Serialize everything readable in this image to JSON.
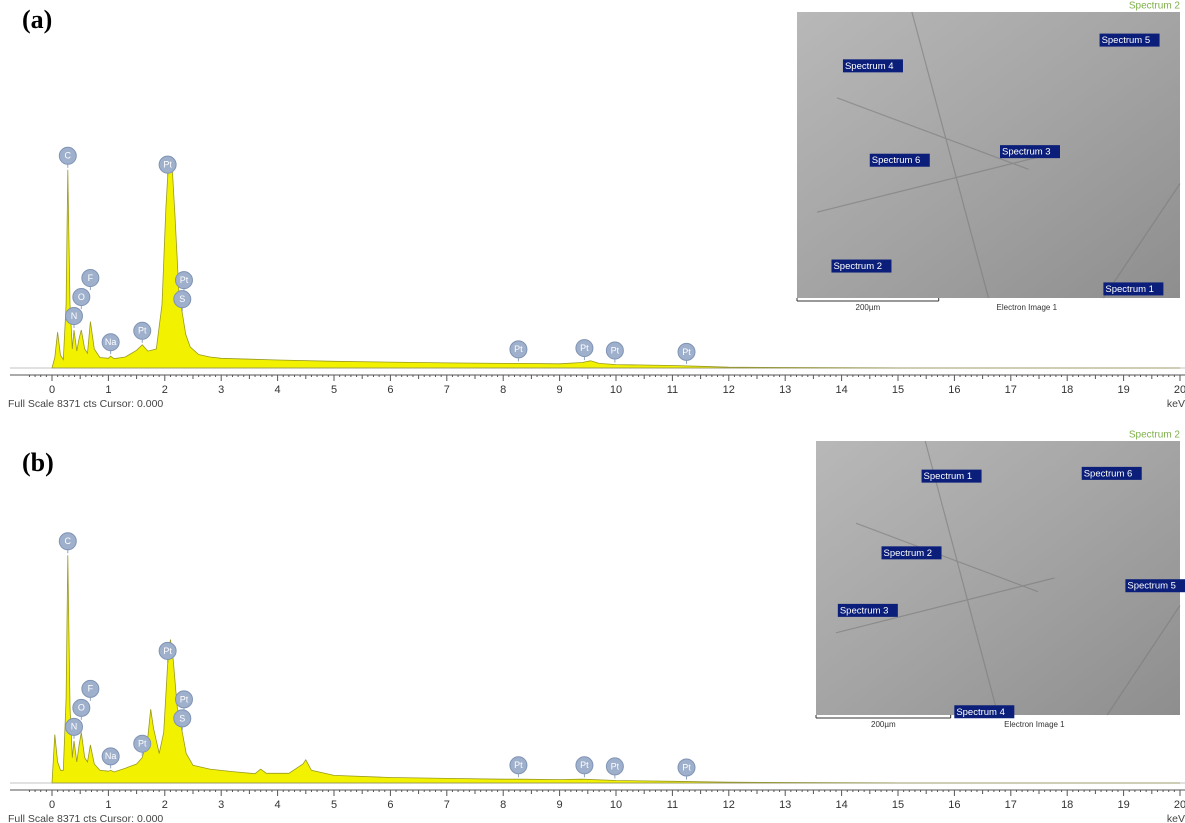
{
  "chart_data": [
    {
      "type": "area",
      "panel_label": "(a)",
      "footer": "Full Scale 8371 cts Cursor: 0.000",
      "x_unit": "keV",
      "color": "#f2f200",
      "xlim": [
        0,
        20
      ],
      "xticks": [
        0,
        1,
        2,
        3,
        4,
        5,
        6,
        7,
        8,
        9,
        10,
        11,
        12,
        13,
        14,
        15,
        16,
        17,
        18,
        19,
        20
      ],
      "ylim": [
        0,
        8371
      ],
      "x": [
        0,
        0.05,
        0.1,
        0.15,
        0.2,
        0.25,
        0.28,
        0.32,
        0.36,
        0.39,
        0.44,
        0.48,
        0.52,
        0.58,
        0.63,
        0.68,
        0.75,
        0.85,
        1.0,
        1.04,
        1.1,
        1.3,
        1.5,
        1.6,
        1.7,
        1.85,
        1.95,
        2.02,
        2.07,
        2.12,
        2.18,
        2.25,
        2.31,
        2.37,
        2.45,
        2.6,
        2.8,
        3,
        4,
        5,
        6,
        7,
        8,
        8.3,
        9,
        9.4,
        9.55,
        9.7,
        10,
        11,
        11.5,
        12,
        15,
        20
      ],
      "values": [
        0,
        250,
        850,
        300,
        200,
        1500,
        4700,
        1500,
        450,
        900,
        400,
        700,
        900,
        450,
        350,
        1100,
        450,
        250,
        230,
        280,
        220,
        260,
        420,
        550,
        400,
        450,
        1500,
        3800,
        4950,
        5000,
        3600,
        1800,
        1300,
        800,
        500,
        320,
        260,
        230,
        190,
        160,
        140,
        120,
        110,
        110,
        100,
        130,
        170,
        110,
        80,
        60,
        40,
        20,
        0,
        0
      ],
      "elements": [
        {
          "label": "C",
          "x": 0.28
        },
        {
          "label": "N",
          "x": 0.39
        },
        {
          "label": "O",
          "x": 0.52
        },
        {
          "label": "F",
          "x": 0.68
        },
        {
          "label": "Na",
          "x": 1.04
        },
        {
          "label": "Pt",
          "x": 1.6
        },
        {
          "label": "Pt",
          "x": 2.05
        },
        {
          "label": "S",
          "x": 2.31
        },
        {
          "label": "Pt",
          "x": 2.34
        },
        {
          "label": "Pt",
          "x": 8.27
        },
        {
          "label": "Pt",
          "x": 9.44
        },
        {
          "label": "Pt",
          "x": 9.98
        },
        {
          "label": "Pt",
          "x": 11.25
        }
      ],
      "inset": {
        "title": "Spectrum 2",
        "scale": "200µm",
        "caption": "Electron Image 1",
        "spots": [
          "Spectrum 4",
          "Spectrum 5",
          "Spectrum 6",
          "Spectrum 3",
          "Spectrum 2",
          "Spectrum 1"
        ]
      }
    },
    {
      "type": "area",
      "panel_label": "(b)",
      "footer": "Full Scale 8371 cts Cursor: 0.000",
      "x_unit": "keV",
      "color": "#f2f200",
      "xlim": [
        0,
        20
      ],
      "xticks": [
        0,
        1,
        2,
        3,
        4,
        5,
        6,
        7,
        8,
        9,
        10,
        11,
        12,
        13,
        14,
        15,
        16,
        17,
        18,
        19,
        20
      ],
      "ylim": [
        0,
        8371
      ],
      "x": [
        0,
        0.05,
        0.1,
        0.15,
        0.2,
        0.25,
        0.28,
        0.32,
        0.36,
        0.39,
        0.44,
        0.48,
        0.52,
        0.58,
        0.63,
        0.68,
        0.75,
        0.85,
        1.0,
        1.04,
        1.1,
        1.3,
        1.5,
        1.6,
        1.7,
        1.75,
        1.8,
        1.9,
        1.98,
        2.05,
        2.1,
        2.15,
        2.22,
        2.31,
        2.38,
        2.5,
        2.8,
        3.2,
        3.6,
        3.7,
        3.8,
        4.2,
        4.45,
        4.5,
        4.6,
        5,
        6,
        7,
        8,
        8.3,
        9,
        9.4,
        10,
        11,
        12,
        15,
        20
      ],
      "values": [
        0,
        1150,
        500,
        300,
        300,
        2000,
        5400,
        1800,
        600,
        1000,
        500,
        900,
        1200,
        600,
        500,
        900,
        450,
        300,
        280,
        300,
        260,
        350,
        450,
        600,
        1100,
        1750,
        1300,
        700,
        1200,
        2800,
        3400,
        2900,
        1800,
        1200,
        700,
        420,
        330,
        270,
        220,
        330,
        230,
        230,
        450,
        550,
        300,
        180,
        130,
        110,
        90,
        90,
        80,
        90,
        60,
        40,
        20,
        0,
        0
      ],
      "elements": [
        {
          "label": "C",
          "x": 0.28
        },
        {
          "label": "N",
          "x": 0.39
        },
        {
          "label": "O",
          "x": 0.52
        },
        {
          "label": "F",
          "x": 0.68
        },
        {
          "label": "Na",
          "x": 1.04
        },
        {
          "label": "Pt",
          "x": 1.6
        },
        {
          "label": "Pt",
          "x": 2.05
        },
        {
          "label": "S",
          "x": 2.31
        },
        {
          "label": "Pt",
          "x": 2.34
        },
        {
          "label": "Pt",
          "x": 8.27
        },
        {
          "label": "Pt",
          "x": 9.44
        },
        {
          "label": "Pt",
          "x": 9.98
        },
        {
          "label": "Pt",
          "x": 11.25
        }
      ],
      "inset": {
        "title": "Spectrum 2",
        "scale": "200µm",
        "caption": "Electron Image 1",
        "spots": [
          "Spectrum 1",
          "Spectrum 6",
          "Spectrum 2",
          "Spectrum 5",
          "Spectrum 3",
          "Spectrum 4"
        ]
      }
    }
  ]
}
